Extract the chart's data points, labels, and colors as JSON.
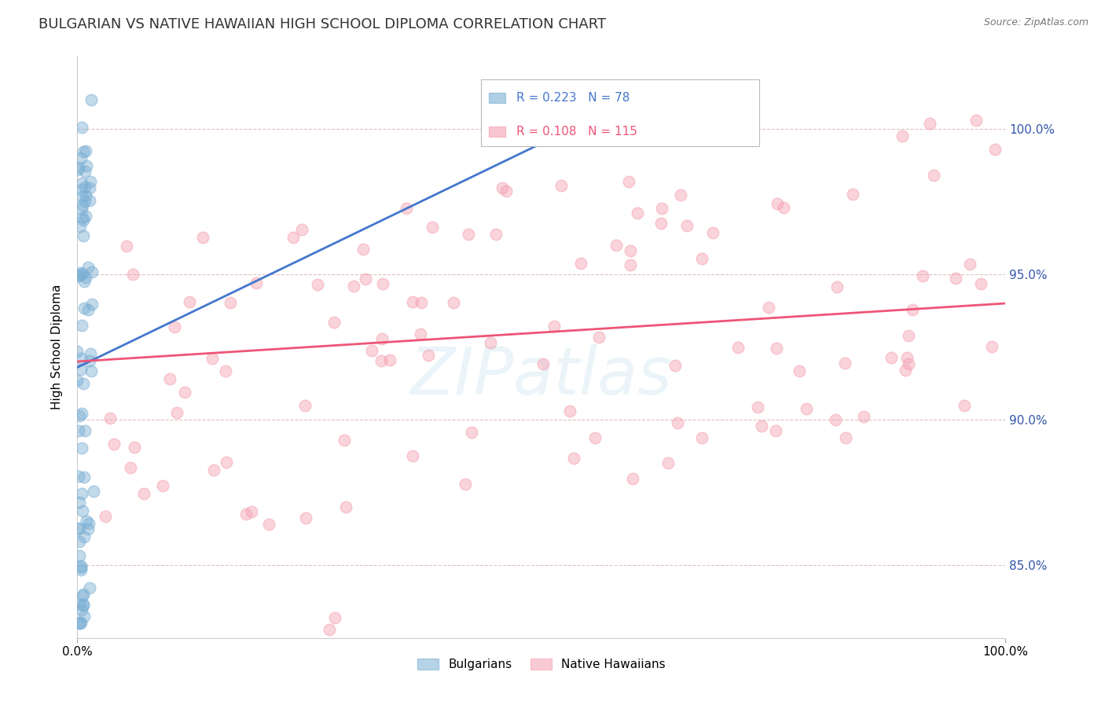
{
  "title": "BULGARIAN VS NATIVE HAWAIIAN HIGH SCHOOL DIPLOMA CORRELATION CHART",
  "source": "Source: ZipAtlas.com",
  "ylabel": "High School Diploma",
  "ytick_labels": [
    "85.0%",
    "90.0%",
    "95.0%",
    "100.0%"
  ],
  "ytick_values": [
    0.85,
    0.9,
    0.95,
    1.0
  ],
  "xlim": [
    0.0,
    1.0
  ],
  "ylim": [
    0.825,
    1.025
  ],
  "bulgarian_R": 0.223,
  "bulgarian_N": 78,
  "native_hawaiian_R": 0.108,
  "native_hawaiian_N": 115,
  "legend_label_bulgarian": "Bulgarians",
  "legend_label_native_hawaiian": "Native Hawaiians",
  "bulgarian_color": "#7BAFD4",
  "native_hawaiian_color": "#F4A0B0",
  "trendline_bulgarian_color": "#4477CC",
  "trendline_native_hawaiian_color": "#EE5577",
  "watermark": "ZIPatlas",
  "background_color": "#FFFFFF",
  "title_fontsize": 13,
  "axis_label_fontsize": 11,
  "tick_fontsize": 11,
  "grid_color": "#DDBBBB",
  "tick_color": "#3355AA"
}
